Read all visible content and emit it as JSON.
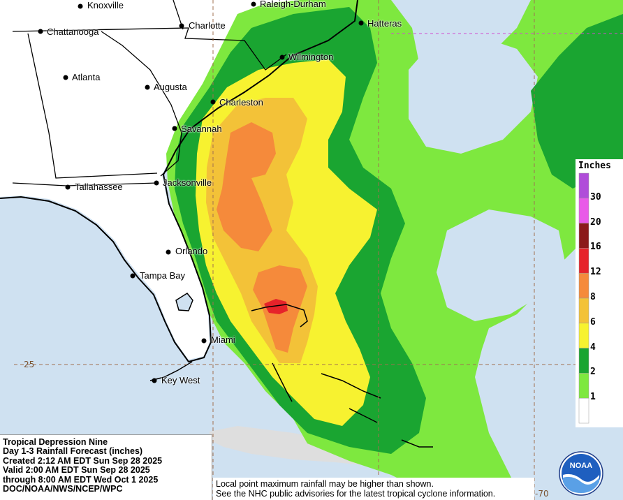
{
  "info_box": {
    "line1": "Tropical Depression Nine",
    "line2": "Day 1-3 Rainfall Forecast (inches)",
    "line3": "Created 2:12 AM EDT Sun Sep 28 2025",
    "line4": "Valid 2:00 AM EDT Sun Sep 28 2025",
    "line5": "through 8:00 AM EDT Wed Oct 1 2025",
    "line6": "DOC/NOAA/NWS/NCEP/WPC"
  },
  "note_box": {
    "line1": "Local point maximum rainfall may be higher than shown.",
    "line2": "See the NHC public advisories for the latest tropical cyclone information."
  },
  "legend": {
    "title": "Inches",
    "items": [
      {
        "label": "30",
        "color": "#b04dd9"
      },
      {
        "label": "20",
        "color": "#e95ae8"
      },
      {
        "label": "16",
        "color": "#8b1a1a"
      },
      {
        "label": "12",
        "color": "#e6232a"
      },
      {
        "label": "8",
        "color": "#f58a3b"
      },
      {
        "label": "6",
        "color": "#f3c238"
      },
      {
        "label": "4",
        "color": "#f7f230"
      },
      {
        "label": "2",
        "color": "#1aa531"
      },
      {
        "label": "1",
        "color": "#7ee83f"
      },
      {
        "label": "",
        "color": "#ffffff"
      }
    ]
  },
  "cities": {
    "knoxville": "Knoxville",
    "raleigh_durham": "Raleigh-Durham",
    "chattanooga": "Chattanooga",
    "charlotte": "Charlotte",
    "hatteras": "Hatteras",
    "wilmington": "Wilmington",
    "atlanta": "Atlanta",
    "augusta": "Augusta",
    "charleston": "Charleston",
    "savannah": "Savannah",
    "tallahassee": "Tallahassee",
    "jacksonville": "Jacksonville",
    "orlando": "Orlando",
    "tampa_bay": "Tampa Bay",
    "miami": "Miami",
    "key_west": "Key West"
  },
  "grid_labels": {
    "lat_25": "25",
    "lon_70": "-70"
  },
  "logo": {
    "text": "NOAA"
  },
  "colors": {
    "ocean": "#cfe1f1",
    "land": "#ffffff",
    "light_green": "#7ee83f",
    "dark_green": "#1aa531",
    "yellow": "#f7f230",
    "gold": "#f3c238",
    "orange": "#f58a3b",
    "red": "#e6232a"
  }
}
